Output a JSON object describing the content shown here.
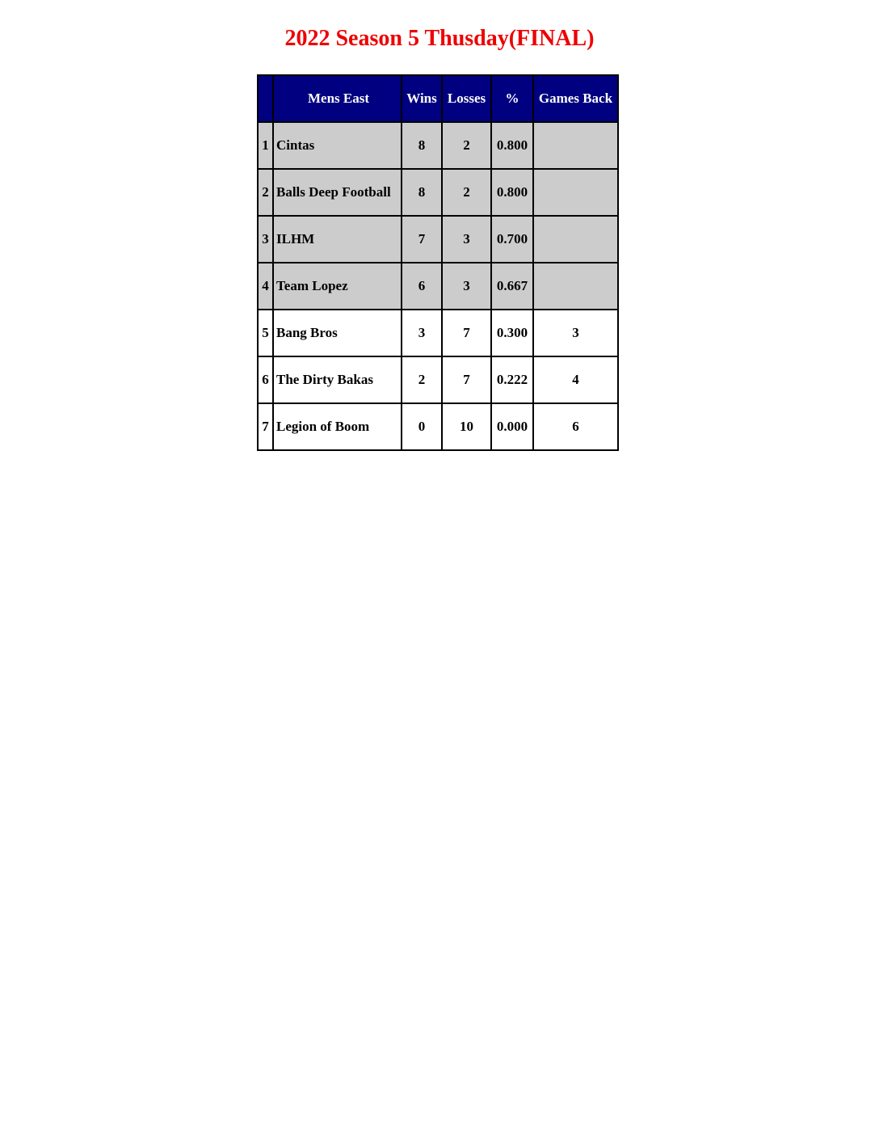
{
  "title": "2022 Season 5 Thusday(FINAL)",
  "colors": {
    "title": "#ee0000",
    "header_bg": "#000080",
    "highlight_row_bg": "#cccccc"
  },
  "table": {
    "headers": [
      "",
      "Mens East",
      "Wins",
      "Losses",
      "%",
      "Games Back"
    ],
    "rows": [
      {
        "rank": "1",
        "team": "Cintas",
        "wins": "8",
        "losses": "2",
        "pct": "0.800",
        "gb": "",
        "highlight": true
      },
      {
        "rank": "2",
        "team": "Balls Deep Football",
        "wins": "8",
        "losses": "2",
        "pct": "0.800",
        "gb": "",
        "highlight": true
      },
      {
        "rank": "3",
        "team": "ILHM",
        "wins": "7",
        "losses": "3",
        "pct": "0.700",
        "gb": "",
        "highlight": true
      },
      {
        "rank": "4",
        "team": "Team Lopez",
        "wins": "6",
        "losses": "3",
        "pct": "0.667",
        "gb": "",
        "highlight": true
      },
      {
        "rank": "5",
        "team": "Bang Bros",
        "wins": "3",
        "losses": "7",
        "pct": "0.300",
        "gb": "3",
        "highlight": false
      },
      {
        "rank": "6",
        "team": "The Dirty Bakas",
        "wins": "2",
        "losses": "7",
        "pct": "0.222",
        "gb": "4",
        "highlight": false
      },
      {
        "rank": "7",
        "team": "Legion of Boom",
        "wins": "0",
        "losses": "10",
        "pct": "0.000",
        "gb": "6",
        "highlight": false
      }
    ]
  }
}
